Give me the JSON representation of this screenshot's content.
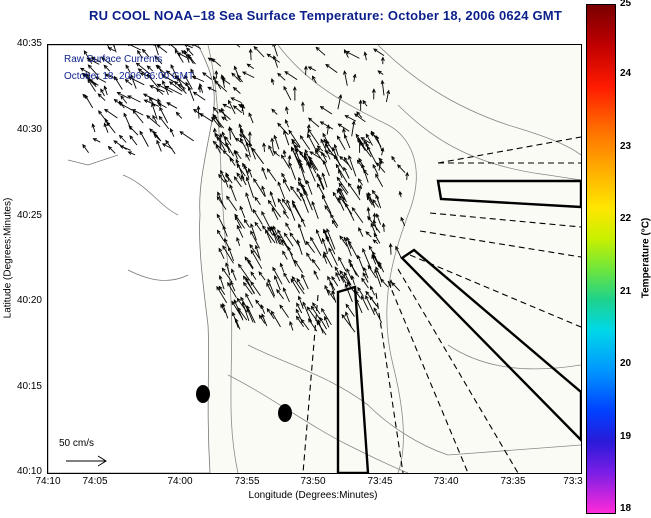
{
  "title": "RU COOL  NOAA–18  Sea Surface Temperature:  October 18, 2006 0624 GMT",
  "overlay": {
    "line1": "Raw Surface Currents",
    "line2": "October 18, 2006 06:00 GMT"
  },
  "scale": {
    "label": "50 cm/s"
  },
  "axes": {
    "xlabel": "Longitude (Degrees:Minutes)",
    "ylabel": "Latitude (Degrees:Minutes)",
    "xticks": [
      "74:10",
      "74:05",
      "74:00",
      "73:55",
      "73:50",
      "73:45",
      "73:40",
      "73:35",
      "73:3"
    ],
    "yticks": [
      "40:35",
      "40:30",
      "40:25",
      "40:20",
      "40:15",
      "40:10"
    ]
  },
  "colorbar": {
    "label": "Temperature (°C)",
    "ticks": [
      "25",
      "24",
      "23",
      "22",
      "21",
      "20",
      "19",
      "18"
    ],
    "range": [
      18,
      25
    ]
  },
  "colors": {
    "title": "#0b1f8a",
    "land": "#ffffff",
    "water": "#fbfbf6"
  }
}
